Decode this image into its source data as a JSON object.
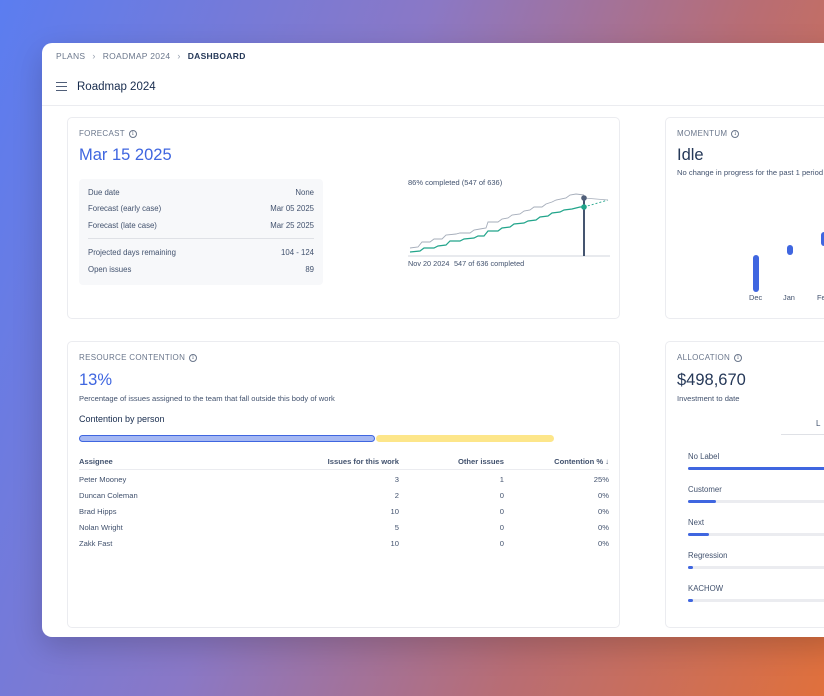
{
  "breadcrumbs": [
    "PLANS",
    "ROADMAP 2024",
    "DASHBOARD"
  ],
  "page_title": "Roadmap 2024",
  "forecast": {
    "label": "FORECAST",
    "date": "Mar 15 2025",
    "rows": [
      {
        "label": "Due date",
        "value": "None"
      },
      {
        "label": "Forecast (early case)",
        "value": "Mar 05 2025"
      },
      {
        "label": "Forecast (late case)",
        "value": "Mar 25 2025"
      }
    ],
    "rows2": [
      {
        "label": "Projected days remaining",
        "value": "104 - 124"
      },
      {
        "label": "Open issues",
        "value": "89"
      }
    ],
    "chart_top_label": "86% completed (547 of 636)",
    "chart_bottom_date": "Nov 20 2024",
    "chart_bottom_completed": "547 of 636 completed"
  },
  "momentum": {
    "label": "MOMENTUM",
    "status": "Idle",
    "description": "No change in progress for the past 1 period",
    "months": [
      "Dec",
      "Jan",
      "Fe"
    ],
    "progress_bars": [
      0.6,
      0.15,
      0.22
    ]
  },
  "resource": {
    "label": "RESOURCE CONTENTION",
    "percent": "13%",
    "description": "Percentage of issues assigned to the team that fall outside this body of work",
    "contention_title": "Contention by person",
    "headers": [
      "Assignee",
      "Issues for this work",
      "Other issues",
      "Contention %"
    ],
    "sort_indicator": "↓",
    "rows": [
      [
        "Peter Mooney",
        "3",
        "1",
        "25%"
      ],
      [
        "Duncan Coleman",
        "2",
        "0",
        "0%"
      ],
      [
        "Brad Hipps",
        "10",
        "0",
        "0%"
      ],
      [
        "Nolan Wright",
        "5",
        "0",
        "0%"
      ],
      [
        "Zakk Fast",
        "10",
        "0",
        "0%"
      ]
    ],
    "colors": {
      "this_work": "#a5b8f3",
      "other": "#fde68a"
    }
  },
  "allocation": {
    "label": "ALLOCATION",
    "amount": "$498,670",
    "description": "Investment to date",
    "tab": "L",
    "items": [
      {
        "label": "No Label",
        "fill": 1.0
      },
      {
        "label": "Customer",
        "fill": 0.16
      },
      {
        "label": "Next",
        "fill": 0.12
      },
      {
        "label": "Regression",
        "fill": 0.03
      },
      {
        "label": "KACHOW",
        "fill": 0.03
      }
    ]
  },
  "icons": [
    "info-icon",
    "menu-icon",
    "chevron-right-icon"
  ],
  "accent_color": "#3f66e0"
}
